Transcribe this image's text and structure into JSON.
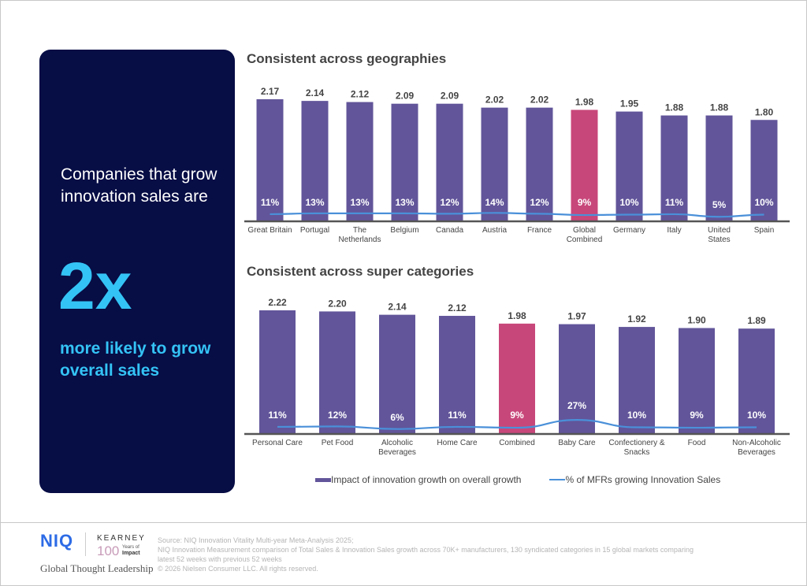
{
  "panel": {
    "lead": "Companies that grow innovation sales are",
    "big": "2x",
    "sub": "more likely to grow overall sales",
    "colors": {
      "background": "#070d45",
      "accent": "#34c3f5"
    }
  },
  "legend": {
    "bar_label": "Impact of innovation growth on overall growth",
    "line_label": "% of MFRs growing Innovation Sales"
  },
  "footer": {
    "niq_logo": "NIQ",
    "kearney": "KEARNEY",
    "hundred": "100",
    "years_of": "Years of",
    "impact": "Impact",
    "tagline": "Global Thought Leadership",
    "source_lines": [
      "Source: NIQ Innovation Vitality Multi-year Meta-Analysis 2025;",
      "NIQ Innovation Measurement comparison of Total Sales & Innovation Sales growth across 70K+ manufacturers, 130 syndicated categories  in 15 global markets comparing",
      "latest 52 weeks with previous 52 weeks",
      "© 2026 Nielsen Consumer LLC. All rights reserved."
    ]
  },
  "chart_data": [
    {
      "type": "bar",
      "title": "Consistent across geographies",
      "categories": [
        "Great Britain",
        "Portugal",
        "The Netherlands",
        "Belgium",
        "Canada",
        "Austria",
        "France",
        "Global Combined",
        "Germany",
        "Italy",
        "United States",
        "Spain"
      ],
      "category_lines": [
        [
          "Great Britain"
        ],
        [
          "Portugal"
        ],
        [
          "The",
          "Netherlands"
        ],
        [
          "Belgium"
        ],
        [
          "Canada"
        ],
        [
          "Austria"
        ],
        [
          "France"
        ],
        [
          "Global",
          "Combined"
        ],
        [
          "Germany"
        ],
        [
          "Italy"
        ],
        [
          "United",
          "States"
        ],
        [
          "Spain"
        ]
      ],
      "series": [
        {
          "name": "Impact of innovation growth on overall growth",
          "type": "bar",
          "values": [
            2.17,
            2.14,
            2.12,
            2.09,
            2.09,
            2.02,
            2.02,
            1.98,
            1.95,
            1.88,
            1.88,
            1.8
          ],
          "labels": [
            "2.17",
            "2.14",
            "2.12",
            "2.09",
            "2.09",
            "2.02",
            "2.02",
            "1.98",
            "1.95",
            "1.88",
            "1.88",
            "1.80"
          ]
        },
        {
          "name": "% of MFRs growing Innovation Sales",
          "type": "line",
          "values": [
            11,
            13,
            13,
            13,
            12,
            14,
            12,
            9,
            10,
            11,
            5,
            10
          ],
          "labels": [
            "11%",
            "13%",
            "13%",
            "13%",
            "12%",
            "14%",
            "12%",
            "9%",
            "10%",
            "11%",
            "5%",
            "10%"
          ]
        }
      ],
      "highlight_index": 7,
      "colors": {
        "bar": "#62559a",
        "highlight": "#c8477a",
        "line": "#4a90d9",
        "axis": "#555555"
      },
      "ylim": [
        0,
        2.4
      ],
      "line_ylim": [
        0,
        100
      ],
      "grid": false,
      "legend": "bottom"
    },
    {
      "type": "bar",
      "title": "Consistent across super categories",
      "categories": [
        "Personal Care",
        "Pet Food",
        "Alcoholic Beverages",
        "Home Care",
        "Combined",
        "Baby Care",
        "Confectionery & Snacks",
        "Food",
        "Non-Alcoholic Beverages"
      ],
      "category_lines": [
        [
          "Personal Care"
        ],
        [
          "Pet Food"
        ],
        [
          "Alcoholic",
          "Beverages"
        ],
        [
          "Home Care"
        ],
        [
          "Combined"
        ],
        [
          "Baby Care"
        ],
        [
          "Confectionery &",
          "Snacks"
        ],
        [
          "Food"
        ],
        [
          "Non-Alcoholic",
          "Beverages"
        ]
      ],
      "series": [
        {
          "name": "Impact of innovation growth on overall growth",
          "type": "bar",
          "values": [
            2.22,
            2.2,
            2.14,
            2.12,
            1.98,
            1.97,
            1.92,
            1.9,
            1.89
          ],
          "labels": [
            "2.22",
            "2.20",
            "2.14",
            "2.12",
            "1.98",
            "1.97",
            "1.92",
            "1.90",
            "1.89"
          ]
        },
        {
          "name": "% of MFRs growing Innovation Sales",
          "type": "line",
          "values": [
            11,
            12,
            6,
            11,
            9,
            27,
            10,
            9,
            10
          ],
          "labels": [
            "11%",
            "12%",
            "6%",
            "11%",
            "9%",
            "27%",
            "10%",
            "9%",
            "10%"
          ]
        }
      ],
      "highlight_index": 4,
      "colors": {
        "bar": "#62559a",
        "highlight": "#c8477a",
        "line": "#4a90d9",
        "axis": "#555555"
      },
      "ylim": [
        0,
        2.4
      ],
      "line_ylim": [
        0,
        100
      ],
      "grid": false,
      "legend": "bottom"
    }
  ]
}
